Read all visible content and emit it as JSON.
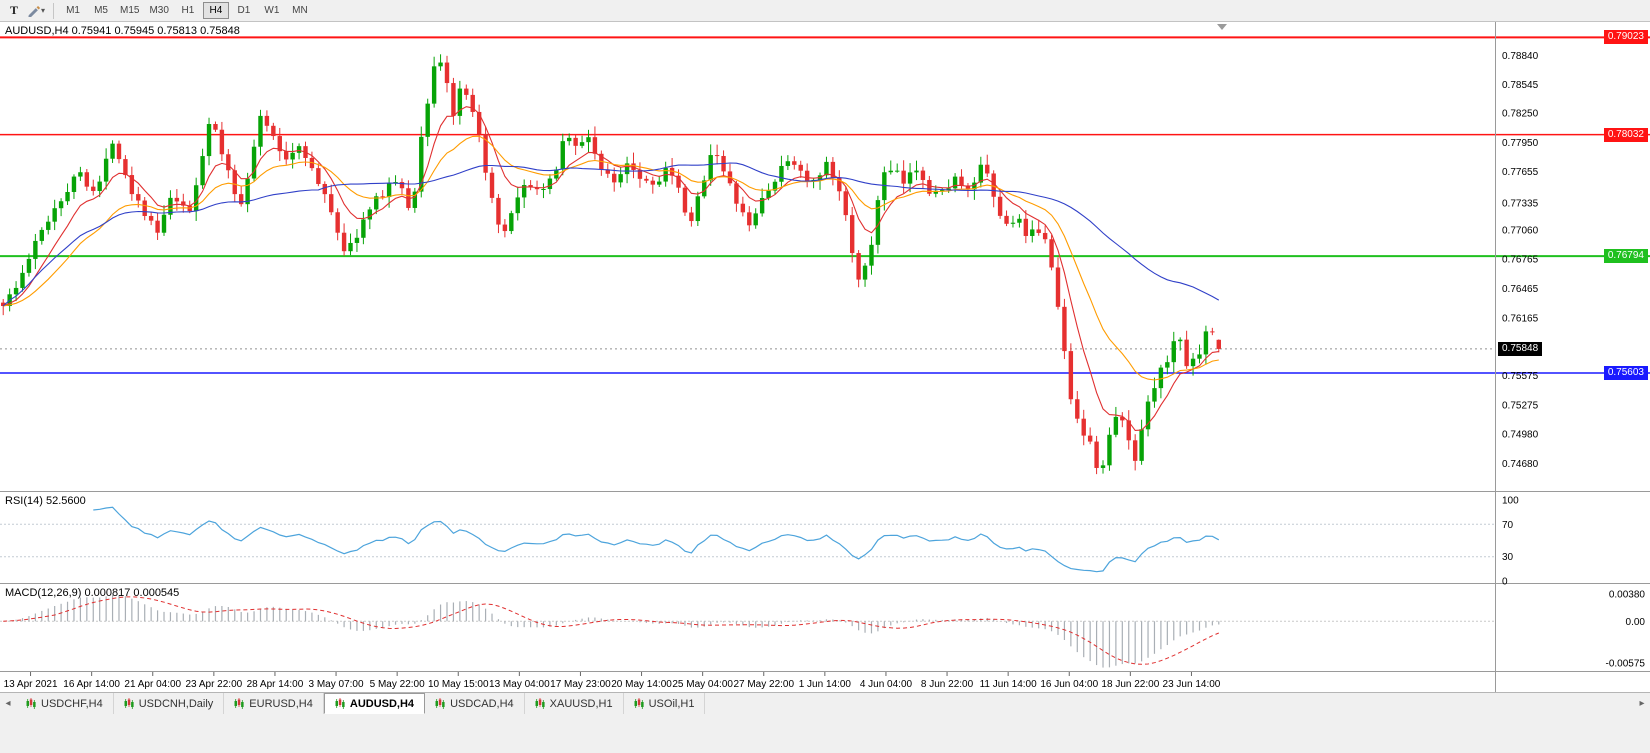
{
  "toolbar": {
    "text_tool_label": "T",
    "caret_down": "▾",
    "timeframes": [
      "M1",
      "M5",
      "M15",
      "M30",
      "H1",
      "H4",
      "D1",
      "W1",
      "MN"
    ],
    "active_timeframe": "H4"
  },
  "header": {
    "symbol_line": "AUDUSD,H4 0.75941 0.75945 0.75813 0.75848"
  },
  "tabs": {
    "scroll_left": "◂",
    "scroll_right": "▸",
    "active": "AUDUSD,H4",
    "items": [
      "USDCHF,H4",
      "USDCNH,Daily",
      "EURUSD,H4",
      "AUDUSD,H4",
      "USDCAD,H4",
      "XAUUSD,H1",
      "USOil,H1"
    ]
  },
  "chart_data": {
    "type": "candlestick",
    "symbol": "AUDUSD",
    "timeframe": "H4",
    "ohlc_display": {
      "open": 0.75941,
      "high": 0.75945,
      "low": 0.75813,
      "close": 0.75848
    },
    "price_range": {
      "top": 0.7918,
      "bottom": 0.744
    },
    "price_axis_ticks": [
      "0.78840",
      "0.78545",
      "0.78250",
      "0.77950",
      "0.77655",
      "0.77335",
      "0.77060",
      "0.76765",
      "0.76465",
      "0.76165",
      "0.75870",
      "0.75575",
      "0.75275",
      "0.74980",
      "0.74680"
    ],
    "horizontal_lines": [
      {
        "price": 0.79023,
        "label": "0.79023",
        "color": "#ff1414",
        "width": 2
      },
      {
        "price": 0.78032,
        "label": "0.78032",
        "color": "#ff1414",
        "width": 1.5
      },
      {
        "price": 0.76794,
        "label": "0.76794",
        "color": "#1fc01f",
        "width": 2
      },
      {
        "price": 0.75603,
        "label": "0.75603",
        "color": "#1a1aff",
        "width": 1.5
      }
    ],
    "bid": {
      "price": 0.75848,
      "label": "0.75848",
      "tag_bg": "#000000"
    },
    "candle_count": 190,
    "close_path": [
      [
        0.0,
        0.7632
      ],
      [
        0.01,
        0.7645
      ],
      [
        0.025,
        0.7688
      ],
      [
        0.04,
        0.7725
      ],
      [
        0.055,
        0.7752
      ],
      [
        0.065,
        0.7768
      ],
      [
        0.072,
        0.7745
      ],
      [
        0.082,
        0.7758
      ],
      [
        0.089,
        0.7802
      ],
      [
        0.096,
        0.778
      ],
      [
        0.105,
        0.7748
      ],
      [
        0.118,
        0.7722
      ],
      [
        0.126,
        0.77
      ],
      [
        0.14,
        0.7742
      ],
      [
        0.152,
        0.7718
      ],
      [
        0.162,
        0.777
      ],
      [
        0.17,
        0.7822
      ],
      [
        0.178,
        0.779
      ],
      [
        0.186,
        0.7762
      ],
      [
        0.194,
        0.7728
      ],
      [
        0.205,
        0.7782
      ],
      [
        0.213,
        0.7828
      ],
      [
        0.222,
        0.7798
      ],
      [
        0.232,
        0.7778
      ],
      [
        0.245,
        0.7795
      ],
      [
        0.258,
        0.7755
      ],
      [
        0.27,
        0.7726
      ],
      [
        0.282,
        0.768
      ],
      [
        0.295,
        0.7712
      ],
      [
        0.31,
        0.7742
      ],
      [
        0.322,
        0.7758
      ],
      [
        0.33,
        0.774
      ],
      [
        0.336,
        0.7722
      ],
      [
        0.344,
        0.78
      ],
      [
        0.352,
        0.7858
      ],
      [
        0.357,
        0.7888
      ],
      [
        0.364,
        0.7862
      ],
      [
        0.371,
        0.782
      ],
      [
        0.377,
        0.7852
      ],
      [
        0.385,
        0.7828
      ],
      [
        0.394,
        0.7788
      ],
      [
        0.404,
        0.7722
      ],
      [
        0.41,
        0.7695
      ],
      [
        0.422,
        0.7732
      ],
      [
        0.432,
        0.7755
      ],
      [
        0.445,
        0.7742
      ],
      [
        0.455,
        0.7772
      ],
      [
        0.463,
        0.7808
      ],
      [
        0.472,
        0.7788
      ],
      [
        0.482,
        0.7802
      ],
      [
        0.492,
        0.7768
      ],
      [
        0.502,
        0.7752
      ],
      [
        0.513,
        0.7778
      ],
      [
        0.524,
        0.7762
      ],
      [
        0.535,
        0.7752
      ],
      [
        0.545,
        0.777
      ],
      [
        0.556,
        0.7744
      ],
      [
        0.565,
        0.7706
      ],
      [
        0.578,
        0.7768
      ],
      [
        0.585,
        0.7795
      ],
      [
        0.594,
        0.7758
      ],
      [
        0.605,
        0.7732
      ],
      [
        0.613,
        0.7706
      ],
      [
        0.625,
        0.774
      ],
      [
        0.638,
        0.7762
      ],
      [
        0.648,
        0.7782
      ],
      [
        0.658,
        0.776
      ],
      [
        0.668,
        0.7752
      ],
      [
        0.678,
        0.7772
      ],
      [
        0.688,
        0.7742
      ],
      [
        0.695,
        0.7716
      ],
      [
        0.703,
        0.765
      ],
      [
        0.712,
        0.7672
      ],
      [
        0.722,
        0.776
      ],
      [
        0.732,
        0.7766
      ],
      [
        0.742,
        0.7752
      ],
      [
        0.752,
        0.7772
      ],
      [
        0.762,
        0.7748
      ],
      [
        0.772,
        0.7742
      ],
      [
        0.782,
        0.7762
      ],
      [
        0.792,
        0.774
      ],
      [
        0.8,
        0.7758
      ],
      [
        0.806,
        0.7772
      ],
      [
        0.815,
        0.7738
      ],
      [
        0.824,
        0.7708
      ],
      [
        0.833,
        0.7722
      ],
      [
        0.842,
        0.7694
      ],
      [
        0.851,
        0.7708
      ],
      [
        0.858,
        0.77
      ],
      [
        0.866,
        0.764
      ],
      [
        0.872,
        0.759
      ],
      [
        0.88,
        0.7524
      ],
      [
        0.889,
        0.75
      ],
      [
        0.897,
        0.7478
      ],
      [
        0.903,
        0.7452
      ],
      [
        0.91,
        0.7498
      ],
      [
        0.918,
        0.752
      ],
      [
        0.925,
        0.7494
      ],
      [
        0.931,
        0.747
      ],
      [
        0.94,
        0.753
      ],
      [
        0.95,
        0.7556
      ],
      [
        0.96,
        0.7582
      ],
      [
        0.968,
        0.7598
      ],
      [
        0.975,
        0.7562
      ],
      [
        0.982,
        0.7576
      ],
      [
        0.99,
        0.7608
      ],
      [
        1.0,
        0.75848
      ]
    ],
    "colors": {
      "up": "#07a307",
      "down": "#e63030",
      "bg": "#ffffff",
      "axis_text": "#000000",
      "separator": "#9a9a9a"
    },
    "moving_averages": [
      {
        "period": 8,
        "type": "ema",
        "color": "#e03030"
      },
      {
        "period": 20,
        "type": "ema",
        "color": "#ff9c00"
      },
      {
        "period": 50,
        "type": "sma",
        "color": "#3040c8"
      }
    ],
    "rsi": {
      "label": "RSI(14) 52.5600",
      "period": 14,
      "current": "52.5600",
      "color": "#4da4dc",
      "levels": [
        70,
        30
      ],
      "ticks": [
        "100",
        "70",
        "30",
        "0"
      ]
    },
    "macd": {
      "label": "MACD(12,26,9) 0.000817 0.000545",
      "fast": 12,
      "slow": 26,
      "signal": 9,
      "current_main": "0.000817",
      "current_signal": "0.000545",
      "hist_color": "#a9afb5",
      "signal_color": "#e03030",
      "ticks": [
        "0.00380",
        "0.00",
        "-0.00575"
      ],
      "scale": {
        "max": 0.0046,
        "min": -0.0066
      }
    },
    "time_axis_labels": [
      "13 Apr 2021",
      "16 Apr 14:00",
      "21 Apr 04:00",
      "23 Apr 22:00",
      "28 Apr 14:00",
      "3 May 07:00",
      "5 May 22:00",
      "10 May 15:00",
      "13 May 04:00",
      "17 May 23:00",
      "20 May 14:00",
      "25 May 04:00",
      "27 May 22:00",
      "1 Jun 14:00",
      "4 Jun 04:00",
      "8 Jun 22:00",
      "11 Jun 14:00",
      "16 Jun 04:00",
      "18 Jun 22:00",
      "23 Jun 14:00"
    ],
    "shift_marker_color": "#9a9a9a"
  }
}
